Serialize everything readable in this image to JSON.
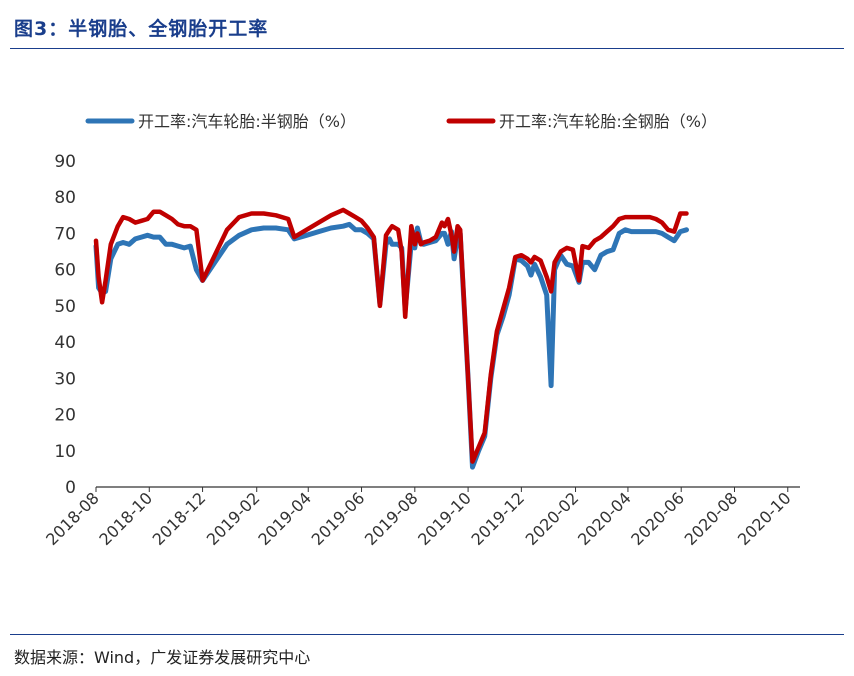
{
  "title": "图3：半钢胎、全钢胎开工率",
  "source": "数据来源：Wind，广发证券发展研究中心",
  "chart_data": {
    "type": "line",
    "ylim": [
      0,
      90
    ],
    "yticks": [
      0,
      10,
      20,
      30,
      40,
      50,
      60,
      70,
      80,
      90
    ],
    "xlim": [
      "2018-08-01",
      "2020-10-15"
    ],
    "xticks": [
      "2018-08",
      "2018-10",
      "2018-12",
      "2019-02",
      "2019-04",
      "2019-06",
      "2019-08",
      "2019-10",
      "2019-12",
      "2020-02",
      "2020-04",
      "2020-06",
      "2020-08",
      "2020-10"
    ],
    "grid": false,
    "legend_position": "top",
    "series": [
      {
        "name": "开工率:汽车轮胎:半钢胎（%）",
        "color": "#2e75b6",
        "points": [
          [
            "2018-08-01",
            66.5
          ],
          [
            "2018-08-04",
            55
          ],
          [
            "2018-08-08",
            53.5
          ],
          [
            "2018-08-12",
            54
          ],
          [
            "2018-08-18",
            63
          ],
          [
            "2018-08-26",
            67
          ],
          [
            "2018-09-01",
            67.5
          ],
          [
            "2018-09-08",
            67
          ],
          [
            "2018-09-15",
            68.5
          ],
          [
            "2018-09-22",
            69
          ],
          [
            "2018-09-29",
            69.5
          ],
          [
            "2018-10-06",
            69
          ],
          [
            "2018-10-13",
            69
          ],
          [
            "2018-10-20",
            67
          ],
          [
            "2018-10-27",
            67
          ],
          [
            "2018-11-03",
            66.5
          ],
          [
            "2018-11-10",
            66
          ],
          [
            "2018-11-17",
            66.5
          ],
          [
            "2018-11-24",
            60
          ],
          [
            "2018-12-01",
            57
          ],
          [
            "2018-12-15",
            62
          ],
          [
            "2018-12-29",
            67
          ],
          [
            "2019-01-12",
            69.5
          ],
          [
            "2019-01-26",
            71
          ],
          [
            "2019-02-09",
            71.5
          ],
          [
            "2019-02-23",
            71.5
          ],
          [
            "2019-03-09",
            71
          ],
          [
            "2019-03-16",
            68.5
          ],
          [
            "2019-03-30",
            69.5
          ],
          [
            "2019-04-13",
            70.5
          ],
          [
            "2019-04-27",
            71.5
          ],
          [
            "2019-05-11",
            72
          ],
          [
            "2019-05-18",
            72.5
          ],
          [
            "2019-05-25",
            71
          ],
          [
            "2019-06-01",
            71
          ],
          [
            "2019-06-08",
            70
          ],
          [
            "2019-06-15",
            68.5
          ],
          [
            "2019-06-22",
            50.5
          ],
          [
            "2019-06-29",
            67
          ],
          [
            "2019-07-03",
            68.5
          ],
          [
            "2019-07-06",
            67
          ],
          [
            "2019-07-13",
            67
          ],
          [
            "2019-07-17",
            66
          ],
          [
            "2019-07-21",
            49
          ],
          [
            "2019-07-28",
            67.5
          ],
          [
            "2019-08-01",
            66
          ],
          [
            "2019-08-04",
            71.5
          ],
          [
            "2019-08-08",
            67.5
          ],
          [
            "2019-08-11",
            67
          ],
          [
            "2019-08-18",
            67.5
          ],
          [
            "2019-08-25",
            68
          ],
          [
            "2019-09-01",
            70
          ],
          [
            "2019-09-04",
            70
          ],
          [
            "2019-09-08",
            67
          ],
          [
            "2019-09-12",
            70.5
          ],
          [
            "2019-09-15",
            63
          ],
          [
            "2019-09-19",
            69
          ],
          [
            "2019-09-22",
            70
          ],
          [
            "2019-10-01",
            30
          ],
          [
            "2019-10-06",
            5.5
          ],
          [
            "2019-10-13",
            10
          ],
          [
            "2019-10-20",
            14
          ],
          [
            "2019-10-27",
            30
          ],
          [
            "2019-11-03",
            42
          ],
          [
            "2019-11-10",
            47
          ],
          [
            "2019-11-17",
            53
          ],
          [
            "2019-11-24",
            63
          ],
          [
            "2019-12-01",
            62.5
          ],
          [
            "2019-12-08",
            61
          ],
          [
            "2019-12-12",
            58.5
          ],
          [
            "2019-12-16",
            61.5
          ],
          [
            "2019-12-23",
            58
          ],
          [
            "2019-12-30",
            53
          ],
          [
            "2020-01-04",
            28
          ],
          [
            "2020-01-08",
            60
          ],
          [
            "2020-01-15",
            64
          ],
          [
            "2020-01-22",
            61.5
          ],
          [
            "2020-01-29",
            61
          ],
          [
            "2020-02-05",
            56.5
          ],
          [
            "2020-02-09",
            62
          ],
          [
            "2020-02-16",
            62
          ],
          [
            "2020-02-23",
            60
          ],
          [
            "2020-03-01",
            64
          ],
          [
            "2020-03-08",
            65
          ],
          [
            "2020-03-15",
            65.5
          ],
          [
            "2020-03-22",
            70
          ],
          [
            "2020-03-29",
            71
          ],
          [
            "2020-04-05",
            70.5
          ],
          [
            "2020-04-12",
            70.5
          ],
          [
            "2020-04-19",
            70.5
          ],
          [
            "2020-04-26",
            70.5
          ],
          [
            "2020-05-03",
            70.5
          ],
          [
            "2020-05-10",
            70
          ],
          [
            "2020-05-17",
            69
          ],
          [
            "2020-05-24",
            68
          ],
          [
            "2020-05-31",
            70.5
          ],
          [
            "2020-06-07",
            71
          ]
        ]
      },
      {
        "name": "开工率:汽车轮胎:全钢胎（%）",
        "color": "#c00000",
        "points": [
          [
            "2018-08-01",
            68
          ],
          [
            "2018-08-04",
            58
          ],
          [
            "2018-08-08",
            51
          ],
          [
            "2018-08-12",
            57
          ],
          [
            "2018-08-18",
            67
          ],
          [
            "2018-08-26",
            72
          ],
          [
            "2018-09-01",
            74.5
          ],
          [
            "2018-09-08",
            74
          ],
          [
            "2018-09-15",
            73
          ],
          [
            "2018-09-22",
            73.5
          ],
          [
            "2018-09-29",
            74
          ],
          [
            "2018-10-06",
            76
          ],
          [
            "2018-10-13",
            76
          ],
          [
            "2018-10-20",
            75
          ],
          [
            "2018-10-27",
            74
          ],
          [
            "2018-11-03",
            72.5
          ],
          [
            "2018-11-10",
            72
          ],
          [
            "2018-11-17",
            72
          ],
          [
            "2018-11-24",
            71
          ],
          [
            "2018-12-01",
            57
          ],
          [
            "2018-12-15",
            64
          ],
          [
            "2018-12-29",
            71
          ],
          [
            "2019-01-12",
            74.5
          ],
          [
            "2019-01-26",
            75.5
          ],
          [
            "2019-02-09",
            75.5
          ],
          [
            "2019-02-23",
            75
          ],
          [
            "2019-03-09",
            74
          ],
          [
            "2019-03-16",
            69
          ],
          [
            "2019-03-30",
            71
          ],
          [
            "2019-04-13",
            73
          ],
          [
            "2019-04-27",
            75
          ],
          [
            "2019-05-11",
            76.5
          ],
          [
            "2019-05-18",
            75.5
          ],
          [
            "2019-05-25",
            74.5
          ],
          [
            "2019-06-01",
            73.5
          ],
          [
            "2019-06-08",
            71.5
          ],
          [
            "2019-06-15",
            69
          ],
          [
            "2019-06-22",
            50
          ],
          [
            "2019-06-29",
            69.5
          ],
          [
            "2019-07-03",
            71
          ],
          [
            "2019-07-06",
            72
          ],
          [
            "2019-07-13",
            71
          ],
          [
            "2019-07-17",
            65
          ],
          [
            "2019-07-21",
            47
          ],
          [
            "2019-07-28",
            72
          ],
          [
            "2019-08-01",
            67
          ],
          [
            "2019-08-04",
            70
          ],
          [
            "2019-08-08",
            67
          ],
          [
            "2019-08-11",
            67.5
          ],
          [
            "2019-08-18",
            68
          ],
          [
            "2019-08-25",
            69
          ],
          [
            "2019-09-01",
            73
          ],
          [
            "2019-09-04",
            72
          ],
          [
            "2019-09-08",
            74
          ],
          [
            "2019-09-12",
            69.5
          ],
          [
            "2019-09-15",
            65
          ],
          [
            "2019-09-19",
            72
          ],
          [
            "2019-09-22",
            71
          ],
          [
            "2019-10-01",
            30
          ],
          [
            "2019-10-06",
            7
          ],
          [
            "2019-10-13",
            11
          ],
          [
            "2019-10-20",
            15
          ],
          [
            "2019-10-27",
            31
          ],
          [
            "2019-11-03",
            43
          ],
          [
            "2019-11-10",
            49
          ],
          [
            "2019-11-17",
            55
          ],
          [
            "2019-11-24",
            63.5
          ],
          [
            "2019-12-01",
            64
          ],
          [
            "2019-12-08",
            63
          ],
          [
            "2019-12-12",
            62
          ],
          [
            "2019-12-16",
            63.5
          ],
          [
            "2019-12-23",
            62.5
          ],
          [
            "2019-12-30",
            58
          ],
          [
            "2020-01-04",
            54
          ],
          [
            "2020-01-08",
            62
          ],
          [
            "2020-01-15",
            65
          ],
          [
            "2020-01-22",
            66
          ],
          [
            "2020-01-29",
            65.5
          ],
          [
            "2020-02-05",
            57
          ],
          [
            "2020-02-09",
            66.5
          ],
          [
            "2020-02-16",
            66
          ],
          [
            "2020-02-23",
            68
          ],
          [
            "2020-03-01",
            69
          ],
          [
            "2020-03-08",
            70.5
          ],
          [
            "2020-03-15",
            72
          ],
          [
            "2020-03-22",
            74
          ],
          [
            "2020-03-29",
            74.5
          ],
          [
            "2020-04-05",
            74.5
          ],
          [
            "2020-04-12",
            74.5
          ],
          [
            "2020-04-19",
            74.5
          ],
          [
            "2020-04-26",
            74.5
          ],
          [
            "2020-05-03",
            74
          ],
          [
            "2020-05-10",
            73
          ],
          [
            "2020-05-17",
            71
          ],
          [
            "2020-05-24",
            70.5
          ],
          [
            "2020-05-31",
            75.5
          ],
          [
            "2020-06-07",
            75.5
          ]
        ]
      }
    ]
  }
}
